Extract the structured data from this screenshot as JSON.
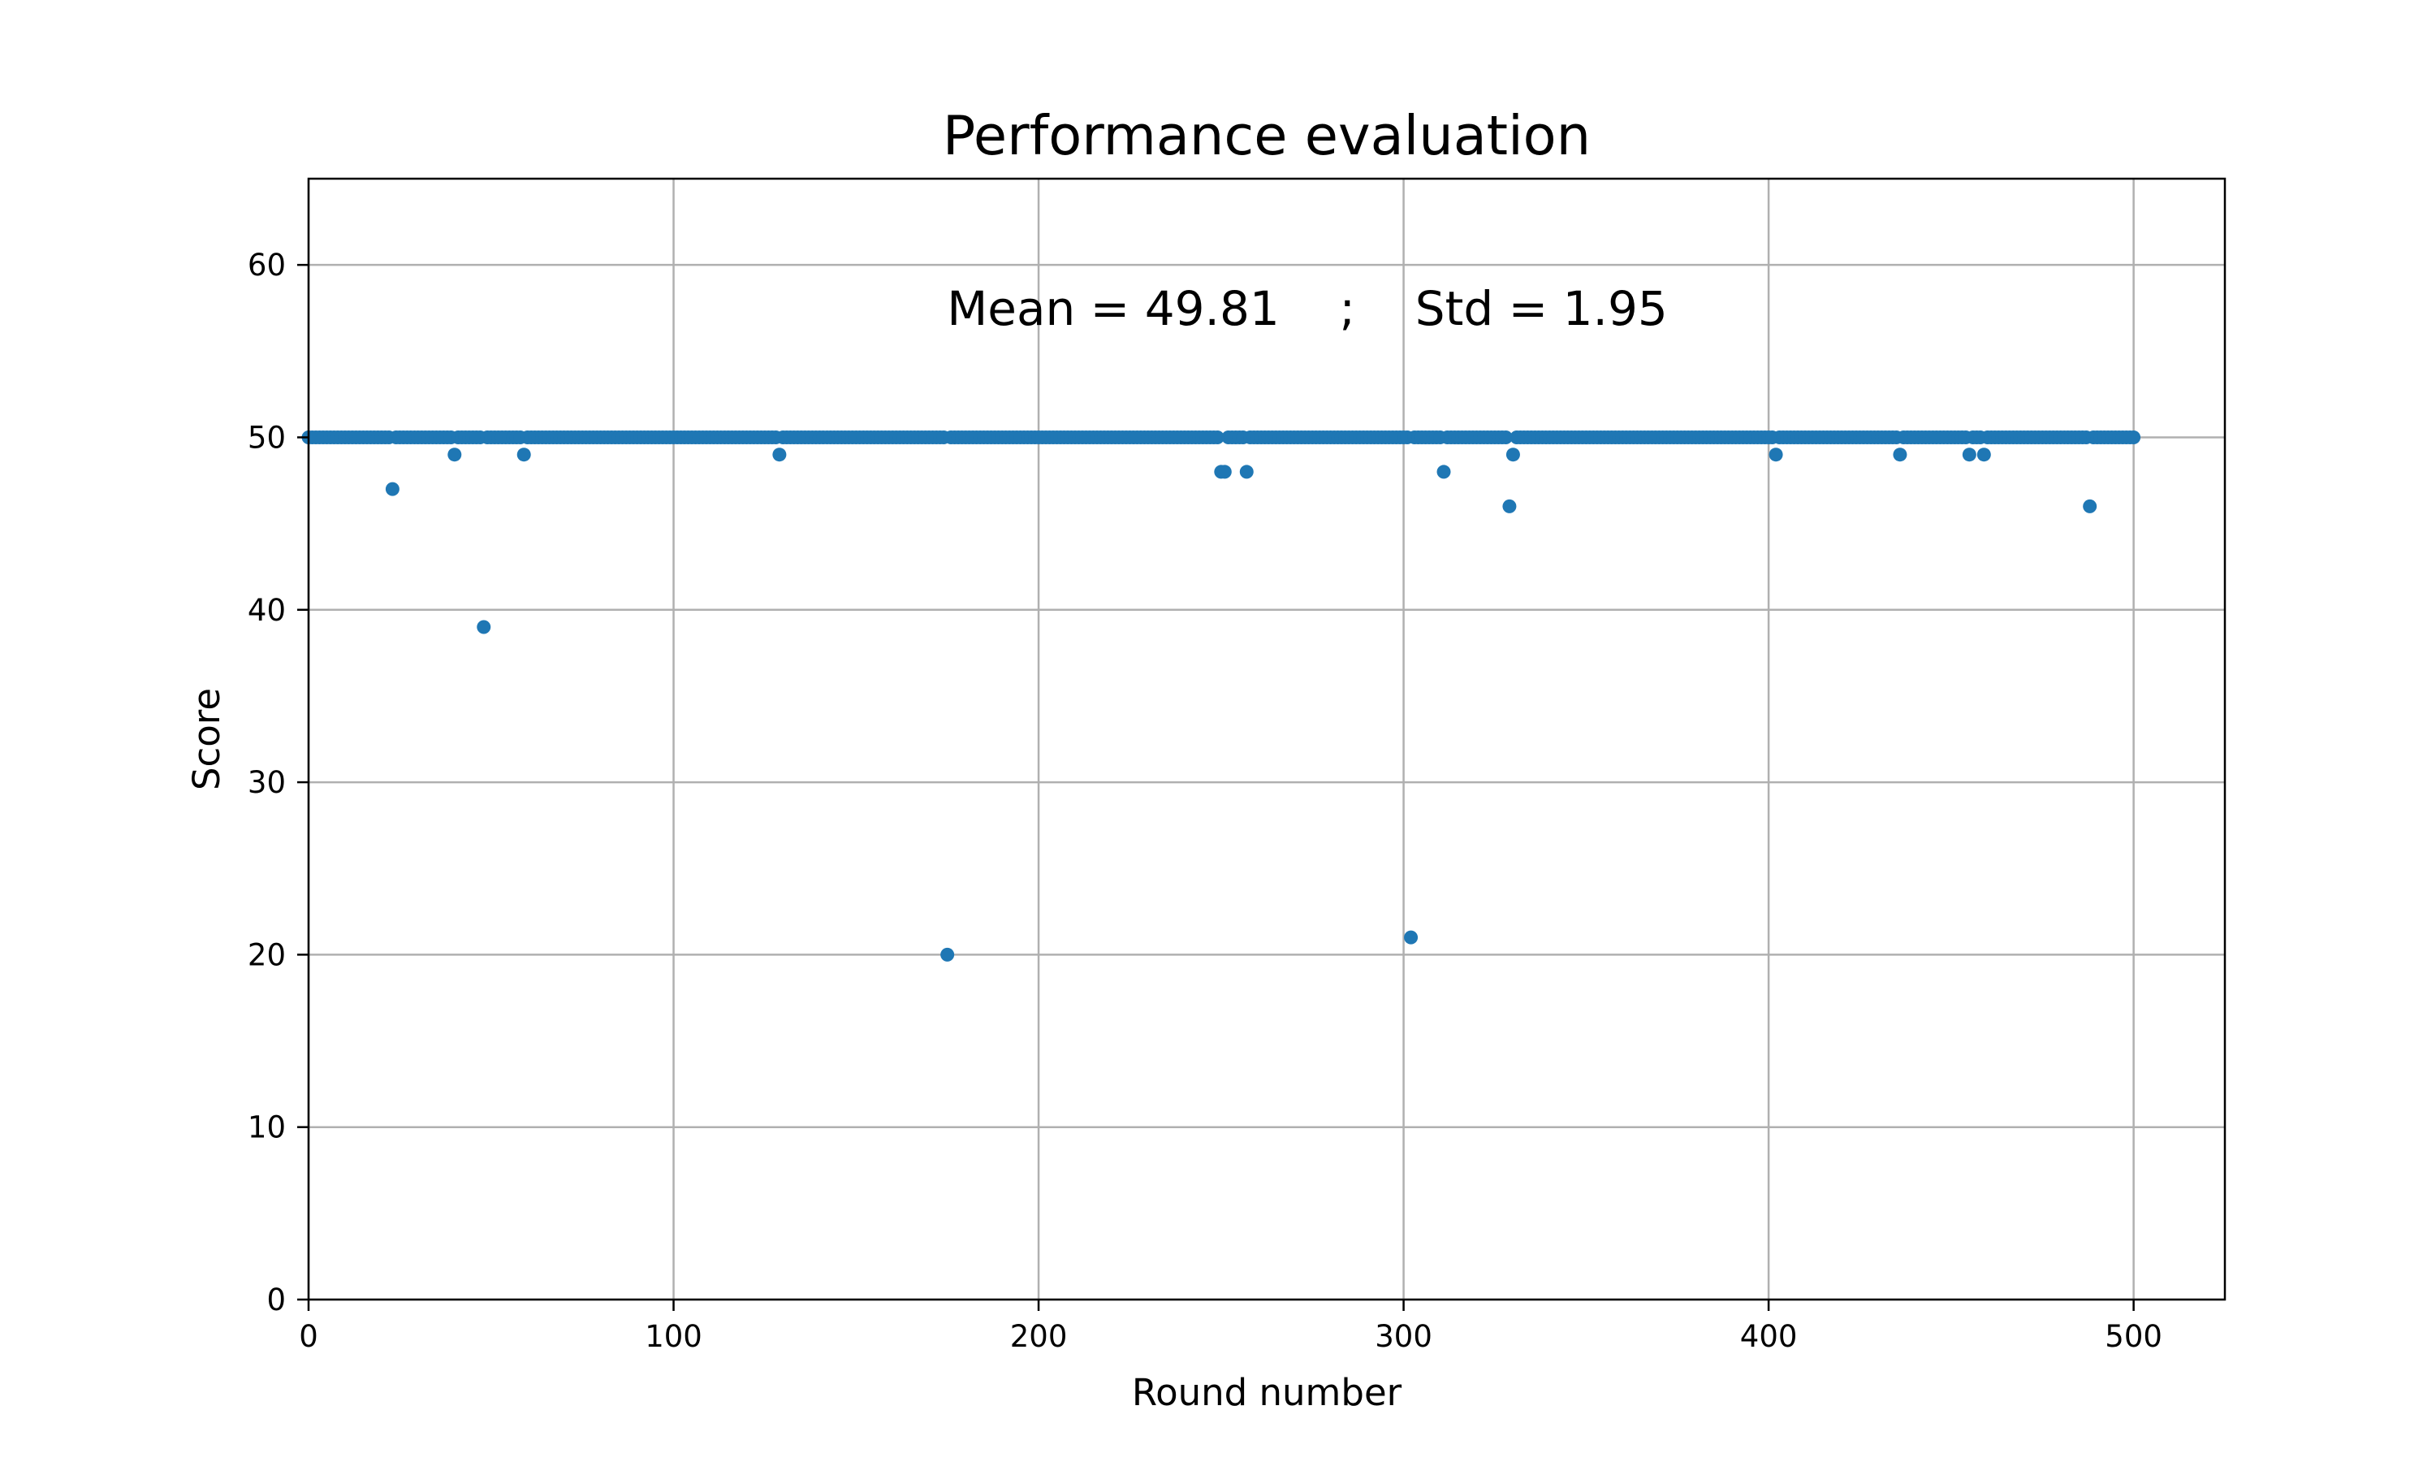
{
  "chart_data": {
    "type": "scatter",
    "title": "Performance evaluation",
    "xlabel": "Round number",
    "ylabel": "Score",
    "annotation": "Mean = 49.81    ;    Std = 1.95",
    "xlim": [
      0,
      525
    ],
    "ylim": [
      0,
      65
    ],
    "xticks": [
      0,
      100,
      200,
      300,
      400,
      500
    ],
    "yticks": [
      0,
      10,
      20,
      30,
      40,
      50,
      60
    ],
    "grid": true,
    "x_range": [
      0,
      500
    ],
    "baseline_value": 50,
    "points": [
      {
        "x": 23,
        "y": 47
      },
      {
        "x": 40,
        "y": 49
      },
      {
        "x": 48,
        "y": 39
      },
      {
        "x": 59,
        "y": 49
      },
      {
        "x": 129,
        "y": 49
      },
      {
        "x": 175,
        "y": 20
      },
      {
        "x": 250,
        "y": 48
      },
      {
        "x": 251,
        "y": 48
      },
      {
        "x": 257,
        "y": 48
      },
      {
        "x": 302,
        "y": 21
      },
      {
        "x": 311,
        "y": 48
      },
      {
        "x": 329,
        "y": 46
      },
      {
        "x": 330,
        "y": 49
      },
      {
        "x": 402,
        "y": 49
      },
      {
        "x": 436,
        "y": 49
      },
      {
        "x": 455,
        "y": 49
      },
      {
        "x": 459,
        "y": 49
      },
      {
        "x": 488,
        "y": 46
      }
    ],
    "colors": {
      "series": "#1f77b4"
    }
  }
}
